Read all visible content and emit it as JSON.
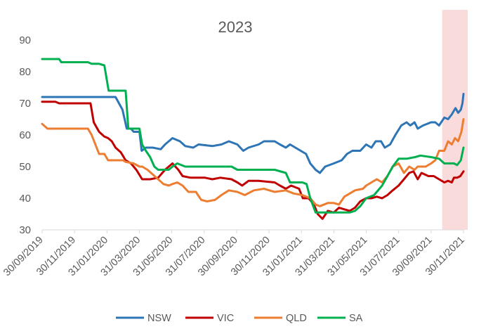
{
  "chart_data": {
    "type": "line",
    "title": "2023",
    "xlabel": "",
    "ylabel": "",
    "ylim": [
      30,
      90
    ],
    "yticks": [
      "30",
      "40",
      "50",
      "60",
      "70",
      "80",
      "90"
    ],
    "xticks": [
      "30/09/2019",
      "30/11/2019",
      "31/01/2020",
      "31/03/2020",
      "31/05/2020",
      "31/07/2020",
      "30/09/2020",
      "30/11/2020",
      "31/01/2021",
      "31/03/2021",
      "31/05/2021",
      "31/07/2021",
      "30/09/2021",
      "30/11/2021"
    ],
    "x_range": [
      "2019-09-30",
      "2021-11-30"
    ],
    "highlight": {
      "from": "2021-10-21",
      "to": "2021-11-30",
      "color": "#fadbdb"
    },
    "grid": false,
    "legend_position": "bottom",
    "series": [
      {
        "name": "NSW",
        "color": "#2e75b6",
        "points": [
          [
            "2019-09-30",
            72
          ],
          [
            "2020-02-01",
            72
          ],
          [
            "2020-02-15",
            72
          ],
          [
            "2020-02-28",
            68
          ],
          [
            "2020-03-07",
            62
          ],
          [
            "2020-03-15",
            62
          ],
          [
            "2020-03-20",
            61
          ],
          [
            "2020-03-31",
            61
          ],
          [
            "2020-04-04",
            55
          ],
          [
            "2020-04-12",
            56
          ],
          [
            "2020-04-25",
            56
          ],
          [
            "2020-05-10",
            55.5
          ],
          [
            "2020-05-18",
            57
          ],
          [
            "2020-06-01",
            59
          ],
          [
            "2020-06-15",
            58
          ],
          [
            "2020-06-25",
            56.5
          ],
          [
            "2020-07-10",
            56
          ],
          [
            "2020-07-20",
            57
          ],
          [
            "2020-08-15",
            56.5
          ],
          [
            "2020-09-01",
            57
          ],
          [
            "2020-09-15",
            58
          ],
          [
            "2020-10-01",
            57
          ],
          [
            "2020-10-12",
            55
          ],
          [
            "2020-10-22",
            56
          ],
          [
            "2020-11-10",
            57
          ],
          [
            "2020-11-20",
            58
          ],
          [
            "2020-12-10",
            58
          ],
          [
            "2020-12-20",
            57
          ],
          [
            "2020-12-31",
            56
          ],
          [
            "2021-01-08",
            57
          ],
          [
            "2021-01-18",
            56
          ],
          [
            "2021-01-28",
            55
          ],
          [
            "2021-02-07",
            54
          ],
          [
            "2021-02-15",
            51
          ],
          [
            "2021-02-25",
            49
          ],
          [
            "2021-03-05",
            48
          ],
          [
            "2021-03-15",
            50
          ],
          [
            "2021-03-31",
            51
          ],
          [
            "2021-04-15",
            52
          ],
          [
            "2021-04-25",
            54
          ],
          [
            "2021-05-05",
            55
          ],
          [
            "2021-05-20",
            55
          ],
          [
            "2021-05-31",
            57
          ],
          [
            "2021-06-10",
            56
          ],
          [
            "2021-06-18",
            58
          ],
          [
            "2021-06-28",
            58
          ],
          [
            "2021-07-05",
            56
          ],
          [
            "2021-07-15",
            57
          ],
          [
            "2021-07-25",
            60
          ],
          [
            "2021-08-05",
            63
          ],
          [
            "2021-08-15",
            64
          ],
          [
            "2021-08-22",
            63
          ],
          [
            "2021-08-30",
            64
          ],
          [
            "2021-09-05",
            62
          ],
          [
            "2021-09-15",
            63
          ],
          [
            "2021-09-30",
            64
          ],
          [
            "2021-10-08",
            64
          ],
          [
            "2021-10-15",
            63
          ],
          [
            "2021-10-25",
            65.5
          ],
          [
            "2021-11-01",
            65
          ],
          [
            "2021-11-08",
            66.5
          ],
          [
            "2021-11-15",
            68.5
          ],
          [
            "2021-11-20",
            67
          ],
          [
            "2021-11-25",
            68
          ],
          [
            "2021-11-28",
            70
          ],
          [
            "2021-11-30",
            73
          ]
        ]
      },
      {
        "name": "VIC",
        "color": "#c00000",
        "points": [
          [
            "2019-09-30",
            70.5
          ],
          [
            "2019-10-25",
            70.5
          ],
          [
            "2019-11-01",
            70
          ],
          [
            "2019-12-15",
            70
          ],
          [
            "2019-12-30",
            70
          ],
          [
            "2020-01-05",
            64
          ],
          [
            "2020-01-15",
            61
          ],
          [
            "2020-01-25",
            59.5
          ],
          [
            "2020-02-01",
            59
          ],
          [
            "2020-02-08",
            58
          ],
          [
            "2020-02-15",
            56
          ],
          [
            "2020-02-25",
            54.5
          ],
          [
            "2020-03-05",
            52
          ],
          [
            "2020-03-15",
            51
          ],
          [
            "2020-03-25",
            49
          ],
          [
            "2020-04-05",
            46
          ],
          [
            "2020-04-20",
            46
          ],
          [
            "2020-05-05",
            46.5
          ],
          [
            "2020-05-18",
            49
          ],
          [
            "2020-05-25",
            50
          ],
          [
            "2020-06-01",
            51
          ],
          [
            "2020-06-12",
            49
          ],
          [
            "2020-06-20",
            47
          ],
          [
            "2020-07-05",
            46.5
          ],
          [
            "2020-08-01",
            46.5
          ],
          [
            "2020-08-15",
            46
          ],
          [
            "2020-08-30",
            46.5
          ],
          [
            "2020-09-20",
            46
          ],
          [
            "2020-10-01",
            45
          ],
          [
            "2020-10-10",
            44
          ],
          [
            "2020-10-22",
            45.5
          ],
          [
            "2020-11-10",
            45.5
          ],
          [
            "2020-12-10",
            45
          ],
          [
            "2020-12-20",
            44
          ],
          [
            "2020-12-31",
            43
          ],
          [
            "2021-01-10",
            44
          ],
          [
            "2021-01-25",
            43
          ],
          [
            "2021-02-01",
            40
          ],
          [
            "2021-02-12",
            40
          ],
          [
            "2021-02-22",
            38
          ],
          [
            "2021-03-01",
            35
          ],
          [
            "2021-03-10",
            33.5
          ],
          [
            "2021-03-20",
            36
          ],
          [
            "2021-03-31",
            35.5
          ],
          [
            "2021-04-10",
            37
          ],
          [
            "2021-04-20",
            36.5
          ],
          [
            "2021-04-30",
            36
          ],
          [
            "2021-05-10",
            37
          ],
          [
            "2021-05-20",
            39
          ],
          [
            "2021-05-31",
            40
          ],
          [
            "2021-06-10",
            40
          ],
          [
            "2021-06-20",
            40.5
          ],
          [
            "2021-06-30",
            40
          ],
          [
            "2021-07-10",
            41
          ],
          [
            "2021-07-20",
            42.5
          ],
          [
            "2021-07-31",
            44
          ],
          [
            "2021-08-10",
            46
          ],
          [
            "2021-08-20",
            48
          ],
          [
            "2021-08-28",
            48.5
          ],
          [
            "2021-09-05",
            46
          ],
          [
            "2021-09-12",
            48
          ],
          [
            "2021-09-25",
            47
          ],
          [
            "2021-10-05",
            47
          ],
          [
            "2021-10-15",
            46
          ],
          [
            "2021-10-25",
            45
          ],
          [
            "2021-11-01",
            45.5
          ],
          [
            "2021-11-08",
            45
          ],
          [
            "2021-11-12",
            46.5
          ],
          [
            "2021-11-18",
            46.5
          ],
          [
            "2021-11-24",
            47
          ],
          [
            "2021-11-30",
            48.5
          ]
        ]
      },
      {
        "name": "QLD",
        "color": "#ed7d31",
        "points": [
          [
            "2019-09-30",
            63.5
          ],
          [
            "2019-10-10",
            62
          ],
          [
            "2019-11-01",
            62
          ],
          [
            "2019-11-25",
            62
          ],
          [
            "2019-12-10",
            62
          ],
          [
            "2019-12-25",
            62
          ],
          [
            "2020-01-01",
            60
          ],
          [
            "2020-01-08",
            57
          ],
          [
            "2020-01-15",
            54
          ],
          [
            "2020-01-25",
            54
          ],
          [
            "2020-02-01",
            52
          ],
          [
            "2020-02-15",
            52
          ],
          [
            "2020-02-29",
            52
          ],
          [
            "2020-03-05",
            51.5
          ],
          [
            "2020-03-20",
            51
          ],
          [
            "2020-03-31",
            50
          ],
          [
            "2020-04-05",
            50
          ],
          [
            "2020-04-15",
            49
          ],
          [
            "2020-04-25",
            47.5
          ],
          [
            "2020-05-05",
            46
          ],
          [
            "2020-05-15",
            44.5
          ],
          [
            "2020-05-25",
            44
          ],
          [
            "2020-06-01",
            44.5
          ],
          [
            "2020-06-10",
            45
          ],
          [
            "2020-06-20",
            44
          ],
          [
            "2020-07-01",
            42
          ],
          [
            "2020-07-15",
            42
          ],
          [
            "2020-07-25",
            39.5
          ],
          [
            "2020-08-05",
            39
          ],
          [
            "2020-08-20",
            39.5
          ],
          [
            "2020-09-01",
            41
          ],
          [
            "2020-09-15",
            42.5
          ],
          [
            "2020-10-01",
            42
          ],
          [
            "2020-10-15",
            41
          ],
          [
            "2020-11-01",
            42.5
          ],
          [
            "2020-11-20",
            43
          ],
          [
            "2020-12-10",
            42
          ],
          [
            "2020-12-31",
            42.5
          ],
          [
            "2021-01-15",
            41.5
          ],
          [
            "2021-01-31",
            41
          ],
          [
            "2021-02-15",
            40
          ],
          [
            "2021-02-25",
            38
          ],
          [
            "2021-03-05",
            37.5
          ],
          [
            "2021-03-20",
            38.5
          ],
          [
            "2021-03-31",
            38.5
          ],
          [
            "2021-04-10",
            38
          ],
          [
            "2021-04-20",
            40.5
          ],
          [
            "2021-04-30",
            41.5
          ],
          [
            "2021-05-10",
            42.5
          ],
          [
            "2021-05-25",
            43
          ],
          [
            "2021-05-31",
            44
          ],
          [
            "2021-06-10",
            45
          ],
          [
            "2021-06-20",
            46
          ],
          [
            "2021-06-30",
            45
          ],
          [
            "2021-07-10",
            47
          ],
          [
            "2021-07-20",
            50
          ],
          [
            "2021-07-31",
            51
          ],
          [
            "2021-08-10",
            48
          ],
          [
            "2021-08-20",
            50
          ],
          [
            "2021-08-30",
            49
          ],
          [
            "2021-09-05",
            50
          ],
          [
            "2021-09-20",
            50
          ],
          [
            "2021-09-30",
            51
          ],
          [
            "2021-10-08",
            52
          ],
          [
            "2021-10-15",
            55
          ],
          [
            "2021-10-25",
            55
          ],
          [
            "2021-11-01",
            58
          ],
          [
            "2021-11-08",
            57
          ],
          [
            "2021-11-14",
            59
          ],
          [
            "2021-11-20",
            58
          ],
          [
            "2021-11-26",
            61
          ],
          [
            "2021-11-30",
            65
          ]
        ]
      },
      {
        "name": "SA",
        "color": "#00b050",
        "points": [
          [
            "2019-09-30",
            84
          ],
          [
            "2019-11-01",
            84
          ],
          [
            "2019-11-05",
            83
          ],
          [
            "2019-12-15",
            83
          ],
          [
            "2019-12-25",
            83
          ],
          [
            "2020-01-01",
            82.5
          ],
          [
            "2020-01-15",
            82.5
          ],
          [
            "2020-01-25",
            82
          ],
          [
            "2020-02-02",
            74
          ],
          [
            "2020-02-29",
            74
          ],
          [
            "2020-03-05",
            74
          ],
          [
            "2020-03-10",
            62
          ],
          [
            "2020-03-31",
            62
          ],
          [
            "2020-04-05",
            57
          ],
          [
            "2020-04-12",
            55
          ],
          [
            "2020-04-20",
            53
          ],
          [
            "2020-04-28",
            50
          ],
          [
            "2020-05-05",
            49
          ],
          [
            "2020-05-25",
            49
          ],
          [
            "2020-06-01",
            50
          ],
          [
            "2020-06-10",
            51
          ],
          [
            "2020-06-25",
            50
          ],
          [
            "2020-07-10",
            50
          ],
          [
            "2020-09-01",
            50
          ],
          [
            "2020-09-20",
            50
          ],
          [
            "2020-10-01",
            49
          ],
          [
            "2020-12-10",
            49
          ],
          [
            "2020-12-31",
            48
          ],
          [
            "2021-01-08",
            45
          ],
          [
            "2021-01-31",
            45
          ],
          [
            "2021-02-08",
            44.5
          ],
          [
            "2021-02-15",
            40
          ],
          [
            "2021-02-25",
            35.5
          ],
          [
            "2021-03-15",
            35.5
          ],
          [
            "2021-03-31",
            35.5
          ],
          [
            "2021-04-15",
            35.5
          ],
          [
            "2021-04-30",
            35.5
          ],
          [
            "2021-05-10",
            36
          ],
          [
            "2021-05-20",
            37.5
          ],
          [
            "2021-05-31",
            40
          ],
          [
            "2021-06-15",
            41
          ],
          [
            "2021-06-30",
            44
          ],
          [
            "2021-07-10",
            47
          ],
          [
            "2021-07-20",
            50
          ],
          [
            "2021-07-31",
            52.5
          ],
          [
            "2021-08-15",
            52.5
          ],
          [
            "2021-08-31",
            53
          ],
          [
            "2021-09-10",
            53.5
          ],
          [
            "2021-09-30",
            53
          ],
          [
            "2021-10-15",
            52.5
          ],
          [
            "2021-10-25",
            51
          ],
          [
            "2021-11-05",
            51
          ],
          [
            "2021-11-12",
            51
          ],
          [
            "2021-11-18",
            50.5
          ],
          [
            "2021-11-25",
            52
          ],
          [
            "2021-11-30",
            56
          ]
        ]
      }
    ]
  }
}
